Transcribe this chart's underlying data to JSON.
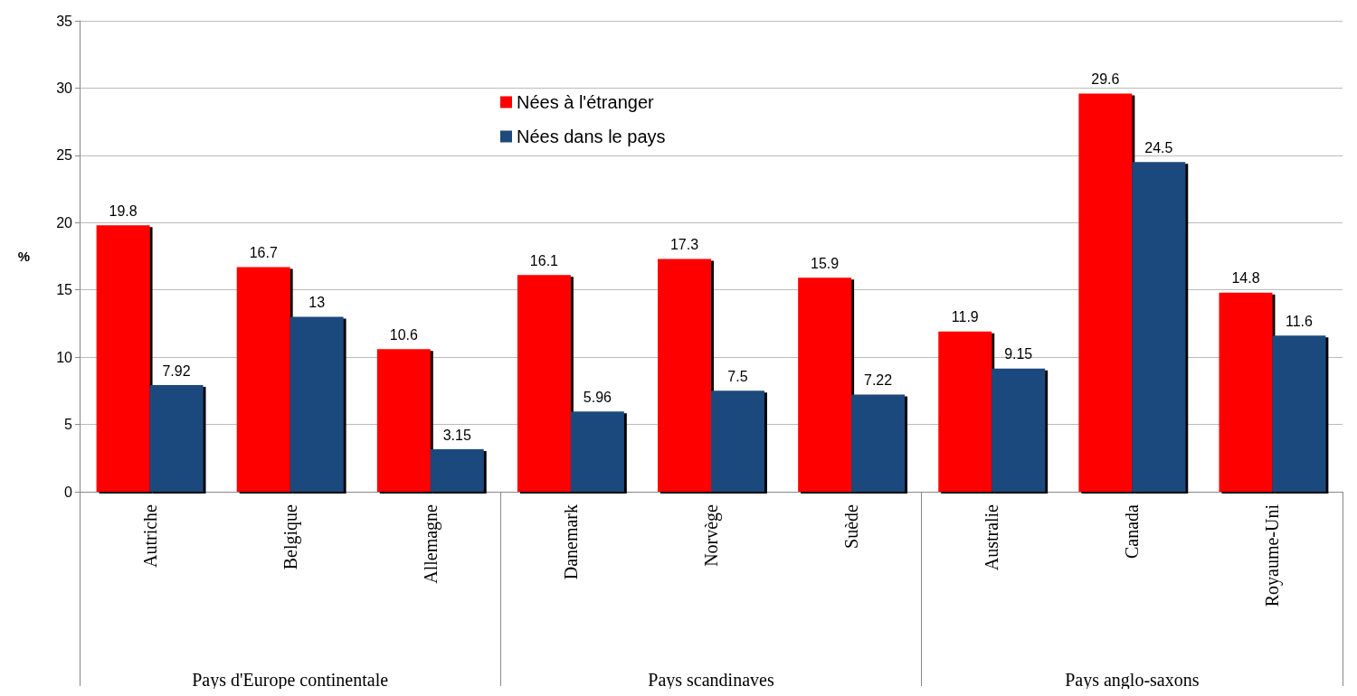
{
  "chart_data": {
    "type": "bar",
    "ylabel": "%",
    "categories": [
      "Autriche",
      "Belgique",
      "Allemagne",
      "Danemark",
      "Norvège",
      "Suède",
      "Australie",
      "Canada",
      "Royaume-Uni"
    ],
    "series": [
      {
        "name": "Nées à l'étranger",
        "color": "#ff0000",
        "values": [
          19.8,
          16.7,
          10.6,
          16.1,
          17.3,
          15.9,
          11.9,
          29.6,
          14.8
        ]
      },
      {
        "name": "Nées dans le pays",
        "color": "#1f497d",
        "values": [
          7.92,
          13,
          3.15,
          5.96,
          7.5,
          7.22,
          9.15,
          24.5,
          11.6
        ]
      }
    ],
    "annotations": [
      "Pays d'Europe continentale",
      "Pays scandinaves",
      "Pays anglo-saxons"
    ],
    "ylim": [
      0,
      35
    ],
    "yticks": [
      0,
      5,
      10,
      15,
      20,
      25,
      30,
      35
    ],
    "grid": "y",
    "legend": "top",
    "data_labels": true
  }
}
